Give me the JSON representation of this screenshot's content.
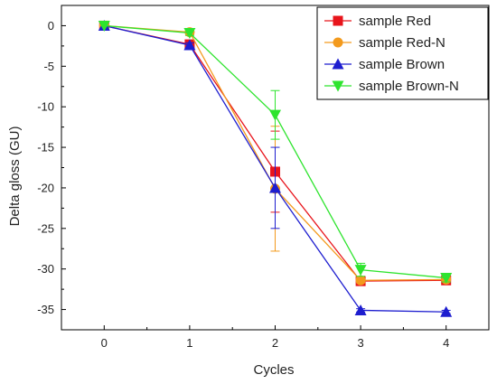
{
  "chart_data": {
    "type": "line",
    "xlabel": "Cycles",
    "ylabel": "Delta gloss (GU)",
    "x": [
      0,
      1,
      2,
      3,
      4
    ],
    "xlim": [
      -0.5,
      4.5
    ],
    "ylim": [
      -37.5,
      2.5
    ],
    "x_ticks": [
      0,
      1,
      2,
      3,
      4
    ],
    "y_ticks": [
      0,
      -5,
      -10,
      -15,
      -20,
      -25,
      -30,
      -35
    ],
    "grid": false,
    "legend_position": "top-right",
    "series": [
      {
        "name": "sample Red",
        "color": "#e8141b",
        "marker": "square",
        "values": [
          0,
          -2.3,
          -18.0,
          -31.5,
          -31.4
        ],
        "errors": [
          0,
          0.4,
          5.0,
          0.3,
          0.3
        ]
      },
      {
        "name": "sample Red-N",
        "color": "#f39a1d",
        "marker": "circle",
        "values": [
          0,
          -0.8,
          -20.1,
          -31.4,
          -31.3
        ],
        "errors": [
          0,
          0.3,
          7.7,
          0.3,
          0.3
        ]
      },
      {
        "name": "sample Brown",
        "color": "#1d1dcf",
        "marker": "triangle-up",
        "values": [
          0,
          -2.4,
          -20.0,
          -35.1,
          -35.3
        ],
        "errors": [
          0,
          0.3,
          5.0,
          0.2,
          0.2
        ]
      },
      {
        "name": "sample Brown-N",
        "color": "#2ee42e",
        "marker": "triangle-down",
        "values": [
          0,
          -0.9,
          -11.0,
          -30.1,
          -31.1
        ],
        "errors": [
          0,
          0.3,
          3.0,
          0.8,
          0.5
        ]
      }
    ]
  }
}
